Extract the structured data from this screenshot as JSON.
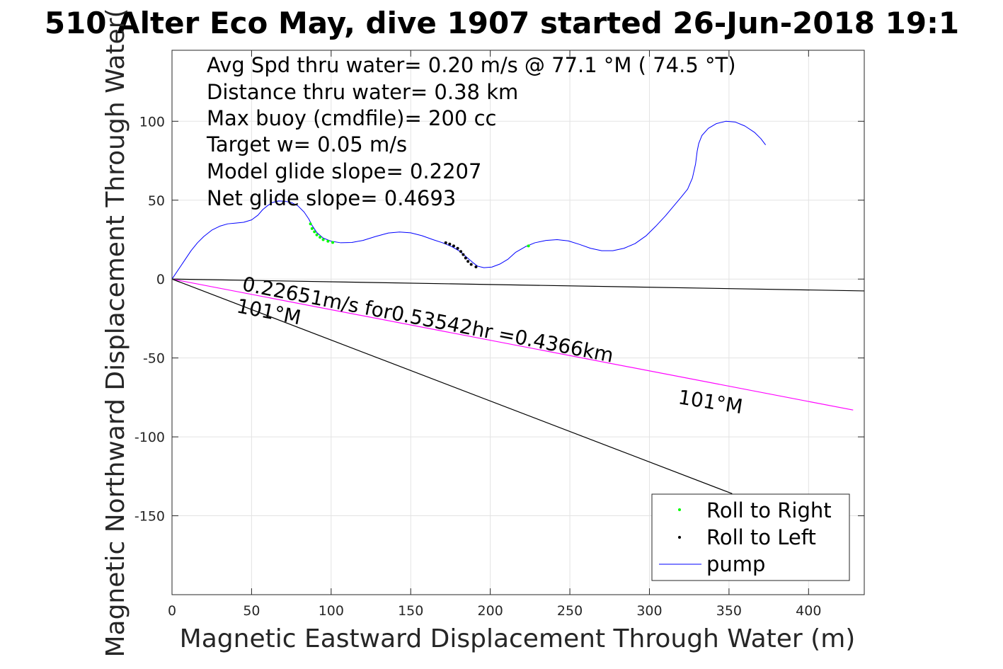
{
  "chart_data": {
    "type": "line",
    "title": "510 Alter Eco May, dive 1907 started 26-Jun-2018 19:1",
    "xlabel": "Magnetic Eastward Displacement Through Water (m)",
    "ylabel": "Magnetic Northward Displacement Through Water(",
    "xlim": [
      0,
      435
    ],
    "ylim": [
      -200,
      145
    ],
    "xticks": [
      0,
      50,
      100,
      150,
      200,
      250,
      300,
      350,
      400
    ],
    "yticks": [
      -150,
      -100,
      -50,
      0,
      50,
      100
    ],
    "grid": true,
    "legend_placement": "bottom-right",
    "info_lines": [
      "Avg Spd thru water=  0.20 m/s @  77.1 °M ( 74.5 °T)",
      "Distance thru water=  0.38 km",
      "Max buoy (cmdfile)= 200 cc",
      "Target w= 0.05 m/s",
      "Model glide slope= 0.2207",
      "Net glide slope= 0.4693"
    ],
    "annotations": {
      "speed_label": "0.22651m/s for0.53542hr =0.4366km",
      "heading_label_near": "101°M",
      "heading_label_far": "101°M"
    },
    "series": [
      {
        "name": "pump",
        "color": "#0000ff",
        "x": [
          0,
          4,
          8,
          12,
          16,
          20,
          25,
          30,
          35,
          40,
          45,
          50,
          54,
          57,
          60,
          63,
          67,
          71,
          75,
          79,
          83,
          86,
          88,
          91,
          95,
          100,
          106,
          113,
          120,
          128,
          136,
          143,
          150,
          157,
          164,
          170,
          176,
          181,
          185,
          189,
          192,
          196,
          201,
          206,
          211,
          216,
          222,
          228,
          235,
          242,
          249,
          256,
          263,
          270,
          277,
          284,
          291,
          298,
          304,
          310,
          315,
          320,
          324,
          327,
          329,
          330,
          331,
          333,
          337,
          342,
          348,
          354,
          360,
          366,
          370,
          373
        ],
        "y": [
          0,
          6,
          12,
          18,
          23,
          27,
          31,
          33.5,
          35,
          35.5,
          36,
          37.5,
          40.5,
          44,
          46.5,
          48.5,
          49.5,
          49.3,
          48.5,
          46.5,
          42.5,
          38,
          34,
          29.5,
          26,
          24,
          23,
          23.2,
          24.5,
          27,
          29.2,
          29.8,
          29.3,
          27.5,
          25,
          23,
          20.5,
          17.5,
          14,
          10.5,
          8.2,
          7.2,
          7.6,
          9.5,
          12.5,
          17,
          20.5,
          23,
          24.5,
          25,
          24.2,
          22,
          19.5,
          18,
          18,
          19.5,
          22.5,
          27.5,
          33.5,
          40,
          46,
          52,
          57,
          64,
          73,
          81,
          86,
          91,
          95.5,
          98.5,
          100,
          99.5,
          97,
          93,
          89,
          85
        ]
      },
      {
        "name": "Roll to Right",
        "color": "#00ff00",
        "marker": "dot",
        "x": [
          87,
          88,
          89.5,
          91,
          93,
          95,
          98,
          101,
          224
        ],
        "y": [
          35,
          32,
          30,
          28,
          26.5,
          25,
          24,
          23.2,
          21
        ]
      },
      {
        "name": "Roll to Left",
        "color": "#000000",
        "marker": "dot",
        "x": [
          172,
          174.5,
          177,
          179.5,
          181.5,
          183,
          184.5,
          186,
          188,
          191
        ],
        "y": [
          23,
          22.2,
          21,
          19.5,
          17.5,
          15.5,
          13.3,
          11.2,
          9.3,
          7.7
        ]
      }
    ],
    "reference_lines": [
      {
        "color": "#000000",
        "x": [
          0,
          435
        ],
        "y": [
          0,
          -7.5
        ]
      },
      {
        "color": "#ff00ff",
        "x": [
          0,
          428
        ],
        "y": [
          0,
          -83
        ]
      },
      {
        "color": "#000000",
        "x": [
          0,
          352
        ],
        "y": [
          0,
          -136
        ]
      }
    ]
  }
}
